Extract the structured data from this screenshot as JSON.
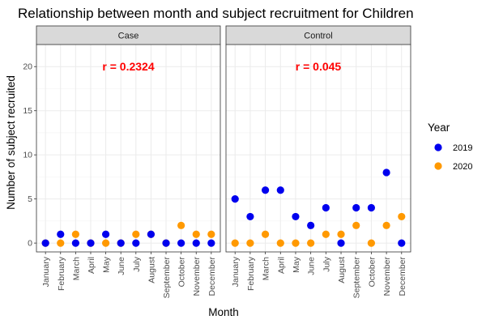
{
  "chart_data": {
    "type": "scatter",
    "title": "Relationship between month and subject recruitment for Children",
    "xlabel": "Month",
    "ylabel": "Number of subject recruited",
    "ylim": [
      -1,
      22.5
    ],
    "yticks": [
      0,
      5,
      10,
      15,
      20
    ],
    "grid": true,
    "categories": [
      "January",
      "February",
      "March",
      "April",
      "May",
      "June",
      "July",
      "August",
      "September",
      "October",
      "November",
      "December"
    ],
    "legend": {
      "title": "Year",
      "placement": "right",
      "entries": [
        {
          "label": "2019",
          "color": "#0000ee"
        },
        {
          "label": "2020",
          "color": "#ff9900"
        }
      ]
    },
    "panels": [
      {
        "name": "Case",
        "annotation": "r =  0.2324",
        "series": [
          {
            "name": "2019",
            "color": "#0000ee",
            "values": [
              0,
              1,
              0,
              0,
              1,
              0,
              0,
              1,
              0,
              0,
              0,
              0
            ]
          },
          {
            "name": "2020",
            "color": "#ff9900",
            "values": [
              0,
              0,
              1,
              0,
              0,
              0,
              1,
              1,
              0,
              2,
              1,
              1
            ]
          }
        ]
      },
      {
        "name": "Control",
        "annotation": "r =  0.045",
        "series": [
          {
            "name": "2019",
            "color": "#0000ee",
            "values": [
              5,
              3,
              6,
              6,
              3,
              2,
              4,
              0,
              4,
              4,
              8,
              0
            ]
          },
          {
            "name": "2020",
            "color": "#ff9900",
            "values": [
              0,
              0,
              1,
              0,
              0,
              0,
              1,
              1,
              2,
              0,
              2,
              3
            ]
          }
        ]
      }
    ]
  }
}
